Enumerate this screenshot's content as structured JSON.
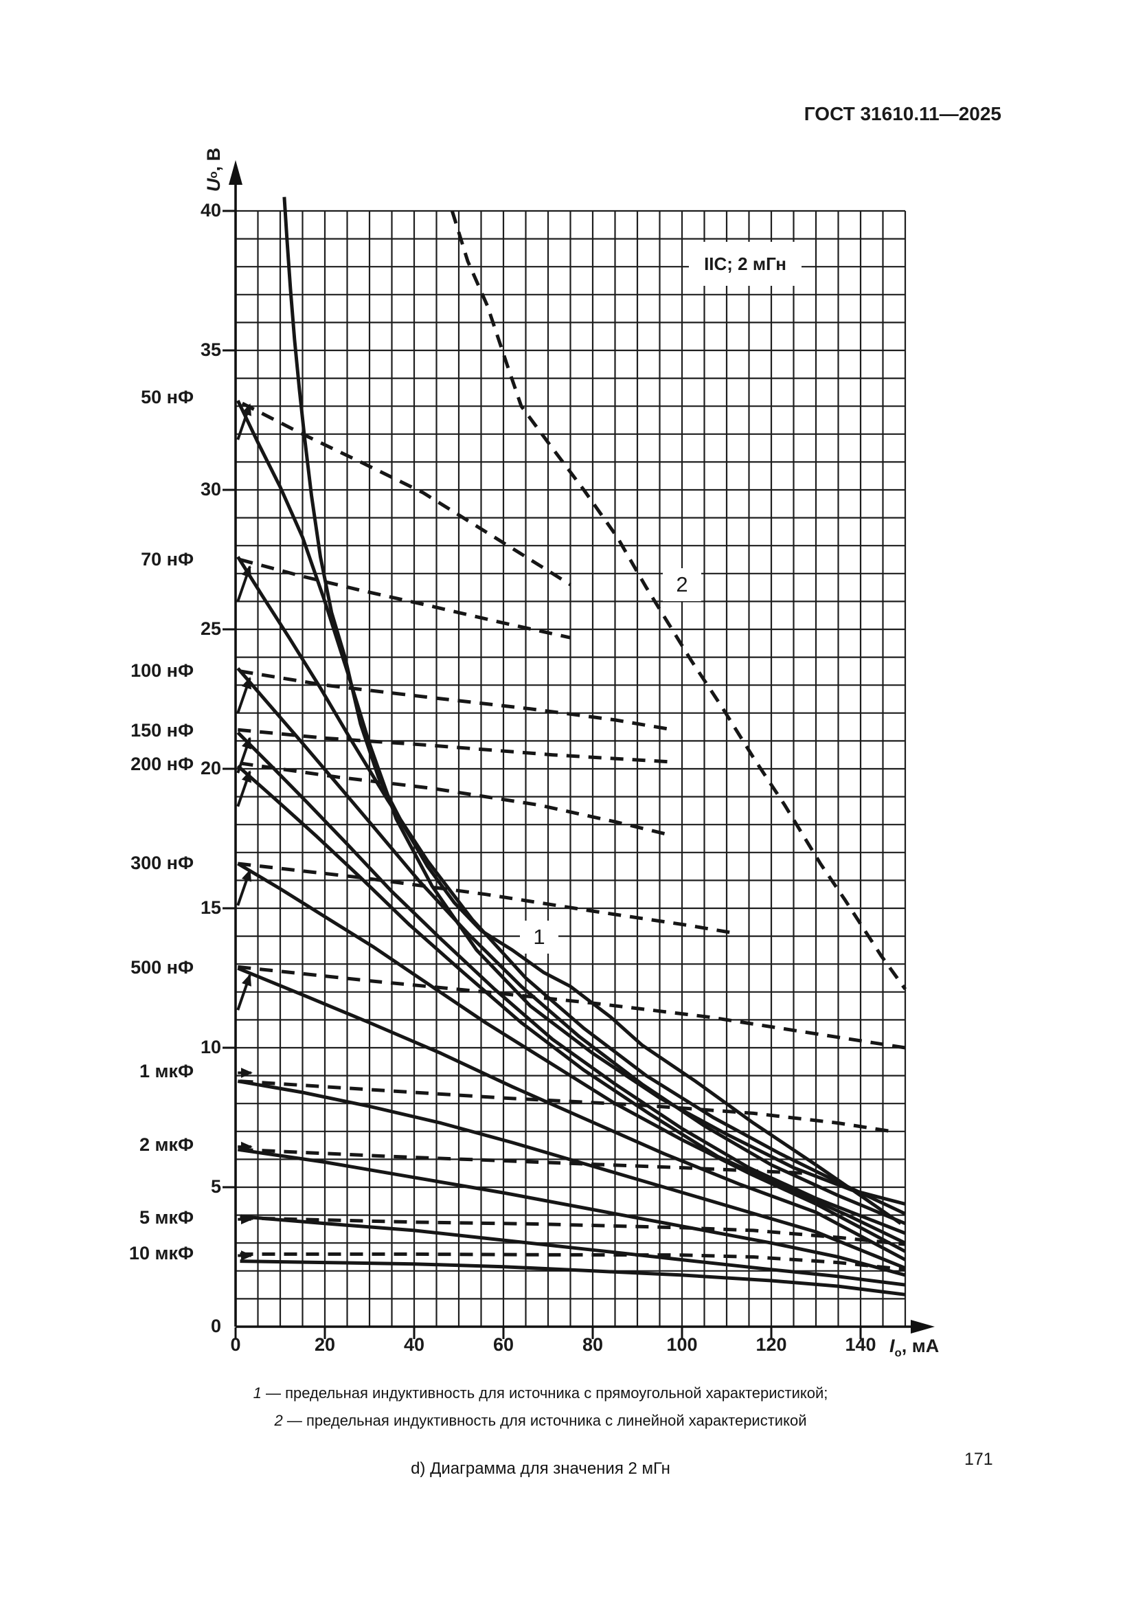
{
  "page": {
    "header": "ГОСТ 31610.11—2025",
    "page_number": "171"
  },
  "figure": {
    "condition": "IIC; 2 мГн",
    "curve_labels": {
      "one": "1",
      "two": "2"
    },
    "y_axis": {
      "symbol": "U",
      "sub": "o",
      "unit": ", В",
      "ticks": [
        40,
        35,
        30,
        25,
        20,
        15,
        10,
        5,
        0
      ]
    },
    "x_axis": {
      "symbol": "I",
      "sub": "o",
      "unit": ", мА",
      "ticks": [
        0,
        20,
        40,
        60,
        80,
        100,
        120,
        140
      ]
    },
    "legend": [
      {
        "num": "1",
        "text": "— предельная индуктивность для источника с прямоугольной характеристикой;"
      },
      {
        "num": "2",
        "text": "— предельная индуктивность для источника с линейной характеристикой"
      }
    ],
    "subcaption": "d) Диаграмма для значения 2 мГн"
  },
  "chart_data": {
    "type": "line",
    "title": "IIC; 2 мГн",
    "xlabel": "Io, мА",
    "ylabel": "Uo, В",
    "xlim": [
      0,
      150
    ],
    "ylim": [
      0,
      40
    ],
    "x_major": 20,
    "x_minor": 5,
    "y_major": 5,
    "y_minor": 1,
    "grid": "on",
    "cap_labels": [
      {
        "text": "50 нФ",
        "v": 33.3
      },
      {
        "text": "70 нФ",
        "v": 27.5
      },
      {
        "text": "100 нФ",
        "v": 23.5
      },
      {
        "text": "150 нФ",
        "v": 21.35
      },
      {
        "text": "200 нФ",
        "v": 20.15
      },
      {
        "text": "300 нФ",
        "v": 16.6
      },
      {
        "text": "500 нФ",
        "v": 12.85
      },
      {
        "text": "1 мкФ",
        "v": 9.15
      },
      {
        "text": "2 мкФ",
        "v": 6.5
      },
      {
        "text": "5 мкФ",
        "v": 3.9
      },
      {
        "text": "10 мкФ",
        "v": 2.6
      }
    ],
    "series": [
      {
        "name": "50 нФ",
        "kind": "rectangular",
        "style": "solid",
        "points": [
          [
            0.5,
            33.2
          ],
          [
            5,
            31.7
          ],
          [
            10,
            30.1
          ],
          [
            15,
            28.3
          ],
          [
            20,
            26.0
          ],
          [
            25,
            23.5
          ],
          [
            30,
            20.9
          ],
          [
            36,
            18.2
          ],
          [
            44,
            15.8
          ],
          [
            54,
            13.5
          ],
          [
            66,
            11.5
          ],
          [
            80,
            9.8
          ],
          [
            95,
            8.2
          ],
          [
            110,
            6.9
          ],
          [
            125,
            5.7
          ],
          [
            138,
            4.9
          ],
          [
            150,
            4.4
          ]
        ]
      },
      {
        "name": "70 нФ",
        "kind": "rectangular",
        "style": "solid",
        "points": [
          [
            0.5,
            27.6
          ],
          [
            6,
            26.2
          ],
          [
            12,
            24.7
          ],
          [
            19,
            22.9
          ],
          [
            26,
            21.0
          ],
          [
            34,
            18.9
          ],
          [
            43,
            16.7
          ],
          [
            53,
            14.6
          ],
          [
            65,
            12.5
          ],
          [
            78,
            10.7
          ],
          [
            92,
            9.0
          ],
          [
            107,
            7.5
          ],
          [
            122,
            6.2
          ],
          [
            136,
            5.1
          ],
          [
            150,
            4.05
          ]
        ]
      },
      {
        "name": "100 нФ",
        "kind": "rectangular",
        "style": "solid",
        "points": [
          [
            0.5,
            23.6
          ],
          [
            7,
            22.4
          ],
          [
            14,
            21.1
          ],
          [
            22,
            19.6
          ],
          [
            31,
            17.9
          ],
          [
            41,
            16.0
          ],
          [
            52,
            14.1
          ],
          [
            64,
            12.2
          ],
          [
            77,
            10.4
          ],
          [
            91,
            8.7
          ],
          [
            105,
            7.2
          ],
          [
            120,
            5.8
          ],
          [
            135,
            4.7
          ],
          [
            150,
            3.7
          ]
        ]
      },
      {
        "name": "150 нФ",
        "kind": "rectangular",
        "style": "solid",
        "points": [
          [
            0.5,
            21.3
          ],
          [
            8,
            20.1
          ],
          [
            16,
            18.8
          ],
          [
            25,
            17.3
          ],
          [
            35,
            15.6
          ],
          [
            46,
            13.9
          ],
          [
            58,
            12.1
          ],
          [
            71,
            10.3
          ],
          [
            85,
            8.7
          ],
          [
            100,
            7.1
          ],
          [
            115,
            5.7
          ],
          [
            130,
            4.6
          ],
          [
            150,
            3.35
          ]
        ]
      },
      {
        "name": "200 нФ",
        "kind": "rectangular",
        "style": "solid",
        "points": [
          [
            0.5,
            20.1
          ],
          [
            9,
            18.9
          ],
          [
            18,
            17.6
          ],
          [
            28,
            16.1
          ],
          [
            39,
            14.4
          ],
          [
            51,
            12.7
          ],
          [
            64,
            10.9
          ],
          [
            78,
            9.2
          ],
          [
            93,
            7.6
          ],
          [
            108,
            6.1
          ],
          [
            123,
            5.0
          ],
          [
            137,
            4.0
          ],
          [
            150,
            3.0
          ]
        ]
      },
      {
        "name": "300 нФ",
        "kind": "rectangular",
        "style": "solid",
        "points": [
          [
            0.5,
            16.6
          ],
          [
            10,
            15.7
          ],
          [
            20,
            14.7
          ],
          [
            31,
            13.6
          ],
          [
            43,
            12.3
          ],
          [
            56,
            10.9
          ],
          [
            70,
            9.5
          ],
          [
            85,
            8.0
          ],
          [
            100,
            6.7
          ],
          [
            115,
            5.5
          ],
          [
            130,
            4.4
          ],
          [
            150,
            2.7
          ]
        ]
      },
      {
        "name": "500 нФ",
        "kind": "rectangular",
        "style": "solid",
        "points": [
          [
            0.5,
            12.85
          ],
          [
            15,
            11.9
          ],
          [
            30,
            10.9
          ],
          [
            46,
            9.8
          ],
          [
            62,
            8.6
          ],
          [
            79,
            7.4
          ],
          [
            96,
            6.2
          ],
          [
            113,
            5.1
          ],
          [
            130,
            4.1
          ],
          [
            150,
            2.4
          ]
        ]
      },
      {
        "name": "1 мкФ",
        "kind": "rectangular",
        "style": "solid",
        "points": [
          [
            0.5,
            8.8
          ],
          [
            15,
            8.4
          ],
          [
            30,
            7.9
          ],
          [
            46,
            7.3
          ],
          [
            62,
            6.6
          ],
          [
            79,
            5.8
          ],
          [
            96,
            5.0
          ],
          [
            113,
            4.2
          ],
          [
            130,
            3.4
          ],
          [
            150,
            2.1
          ]
        ]
      },
      {
        "name": "2 мкФ",
        "kind": "rectangular",
        "style": "solid",
        "points": [
          [
            0.5,
            6.35
          ],
          [
            20,
            5.9
          ],
          [
            40,
            5.35
          ],
          [
            60,
            4.8
          ],
          [
            80,
            4.2
          ],
          [
            100,
            3.6
          ],
          [
            120,
            3.0
          ],
          [
            135,
            2.5
          ],
          [
            150,
            1.85
          ]
        ]
      },
      {
        "name": "5 мкФ",
        "kind": "rectangular",
        "style": "solid",
        "points": [
          [
            1,
            3.95
          ],
          [
            20,
            3.7
          ],
          [
            40,
            3.45
          ],
          [
            60,
            3.1
          ],
          [
            80,
            2.75
          ],
          [
            100,
            2.4
          ],
          [
            120,
            2.05
          ],
          [
            135,
            1.8
          ],
          [
            150,
            1.5
          ]
        ]
      },
      {
        "name": "10 мкФ",
        "kind": "rectangular",
        "style": "solid",
        "points": [
          [
            1,
            2.35
          ],
          [
            20,
            2.3
          ],
          [
            40,
            2.25
          ],
          [
            60,
            2.15
          ],
          [
            80,
            2.0
          ],
          [
            100,
            1.85
          ],
          [
            120,
            1.65
          ],
          [
            135,
            1.45
          ],
          [
            150,
            1.15
          ]
        ]
      },
      {
        "name": "50 нФ",
        "kind": "linear",
        "style": "dashed",
        "points": [
          [
            1.5,
            33.1
          ],
          [
            15,
            32.0
          ],
          [
            28,
            31.0
          ],
          [
            42,
            29.9
          ],
          [
            56,
            28.5
          ],
          [
            68,
            27.3
          ],
          [
            75,
            26.6
          ]
        ]
      },
      {
        "name": "70 нФ",
        "kind": "linear",
        "style": "dashed",
        "points": [
          [
            1,
            27.5
          ],
          [
            15,
            26.9
          ],
          [
            28,
            26.4
          ],
          [
            42,
            25.9
          ],
          [
            58,
            25.3
          ],
          [
            75,
            24.7
          ]
        ]
      },
      {
        "name": "100 нФ",
        "kind": "linear",
        "style": "dashed",
        "points": [
          [
            1,
            23.5
          ],
          [
            20,
            23.0
          ],
          [
            44,
            22.55
          ],
          [
            66,
            22.15
          ],
          [
            85,
            21.75
          ],
          [
            98,
            21.4
          ]
        ]
      },
      {
        "name": "150 нФ",
        "kind": "linear",
        "style": "dashed",
        "points": [
          [
            0.5,
            21.4
          ],
          [
            20,
            21.1
          ],
          [
            43,
            20.85
          ],
          [
            71,
            20.5
          ],
          [
            97,
            20.25
          ]
        ]
      },
      {
        "name": "200 нФ",
        "kind": "linear",
        "style": "dashed",
        "points": [
          [
            1,
            20.2
          ],
          [
            23,
            19.7
          ],
          [
            44,
            19.3
          ],
          [
            68,
            18.7
          ],
          [
            85,
            18.1
          ],
          [
            98,
            17.6
          ]
        ]
      },
      {
        "name": "300 нФ",
        "kind": "linear",
        "style": "dashed",
        "points": [
          [
            0.5,
            16.6
          ],
          [
            28,
            16.1
          ],
          [
            56,
            15.5
          ],
          [
            80,
            14.9
          ],
          [
            101,
            14.4
          ],
          [
            112,
            14.1
          ]
        ]
      },
      {
        "name": "500 нФ",
        "kind": "linear",
        "style": "dashed",
        "points": [
          [
            0.5,
            12.9
          ],
          [
            30,
            12.4
          ],
          [
            56,
            12.0
          ],
          [
            80,
            11.6
          ],
          [
            106,
            11.1
          ],
          [
            130,
            10.5
          ],
          [
            150,
            10.0
          ]
        ]
      },
      {
        "name": "1 мкФ",
        "kind": "linear",
        "style": "dashed",
        "points": [
          [
            1,
            8.8
          ],
          [
            30,
            8.5
          ],
          [
            60,
            8.2
          ],
          [
            90,
            7.95
          ],
          [
            116,
            7.65
          ],
          [
            135,
            7.3
          ],
          [
            147,
            7.0
          ]
        ]
      },
      {
        "name": "2 мкФ",
        "kind": "linear",
        "style": "dashed",
        "points": [
          [
            1,
            6.35
          ],
          [
            35,
            6.1
          ],
          [
            68,
            5.9
          ],
          [
            100,
            5.7
          ],
          [
            128,
            5.5
          ]
        ]
      },
      {
        "name": "5 мкФ",
        "kind": "linear",
        "style": "dashed",
        "points": [
          [
            1,
            3.9
          ],
          [
            40,
            3.75
          ],
          [
            68,
            3.68
          ],
          [
            100,
            3.55
          ],
          [
            116,
            3.45
          ],
          [
            135,
            3.2
          ],
          [
            150,
            2.95
          ]
        ]
      },
      {
        "name": "10 мкФ",
        "kind": "linear",
        "style": "dashed",
        "points": [
          [
            1,
            2.6
          ],
          [
            40,
            2.6
          ],
          [
            68,
            2.58
          ],
          [
            100,
            2.57
          ],
          [
            116,
            2.5
          ],
          [
            135,
            2.3
          ],
          [
            150,
            2.05
          ]
        ]
      },
      {
        "name": "1",
        "kind": "limit-rectangular",
        "style": "solid",
        "points": [
          [
            10.9,
            40.5
          ],
          [
            11.5,
            39
          ],
          [
            12.3,
            37.2
          ],
          [
            13.2,
            35.4
          ],
          [
            14.3,
            33.6
          ],
          [
            15.5,
            31.8
          ],
          [
            17,
            29.8
          ],
          [
            19,
            27.6
          ],
          [
            21.5,
            25.6
          ],
          [
            24.5,
            24.0
          ],
          [
            28,
            21.6
          ],
          [
            32,
            19.7
          ],
          [
            37.5,
            18.0
          ],
          [
            43,
            16.5
          ],
          [
            49,
            15.2
          ],
          [
            55,
            14.2
          ],
          [
            62,
            13.5
          ],
          [
            69,
            12.7
          ],
          [
            75,
            12.2
          ],
          [
            84,
            11.1
          ],
          [
            91,
            10.1
          ],
          [
            103,
            8.8
          ],
          [
            116,
            7.3
          ],
          [
            130,
            5.8
          ],
          [
            140,
            4.7
          ],
          [
            149,
            3.7
          ]
        ]
      },
      {
        "name": "2",
        "kind": "limit-linear",
        "style": "dashed",
        "points": [
          [
            48.5,
            40
          ],
          [
            52,
            38.2
          ],
          [
            56.4,
            36.6
          ],
          [
            61,
            34.4
          ],
          [
            64,
            33.0
          ],
          [
            70,
            31.7
          ],
          [
            78,
            30.0
          ],
          [
            85.5,
            28.3
          ],
          [
            92,
            26.5
          ],
          [
            97,
            25.2
          ],
          [
            102,
            23.9
          ],
          [
            109,
            22.2
          ],
          [
            116,
            20.4
          ],
          [
            123,
            18.7
          ],
          [
            131,
            16.6
          ],
          [
            136.5,
            15.3
          ],
          [
            144.6,
            13.3
          ],
          [
            150,
            12.1
          ]
        ]
      }
    ]
  },
  "colors": {
    "ink": "#1a1a1a",
    "background": "#ffffff"
  }
}
